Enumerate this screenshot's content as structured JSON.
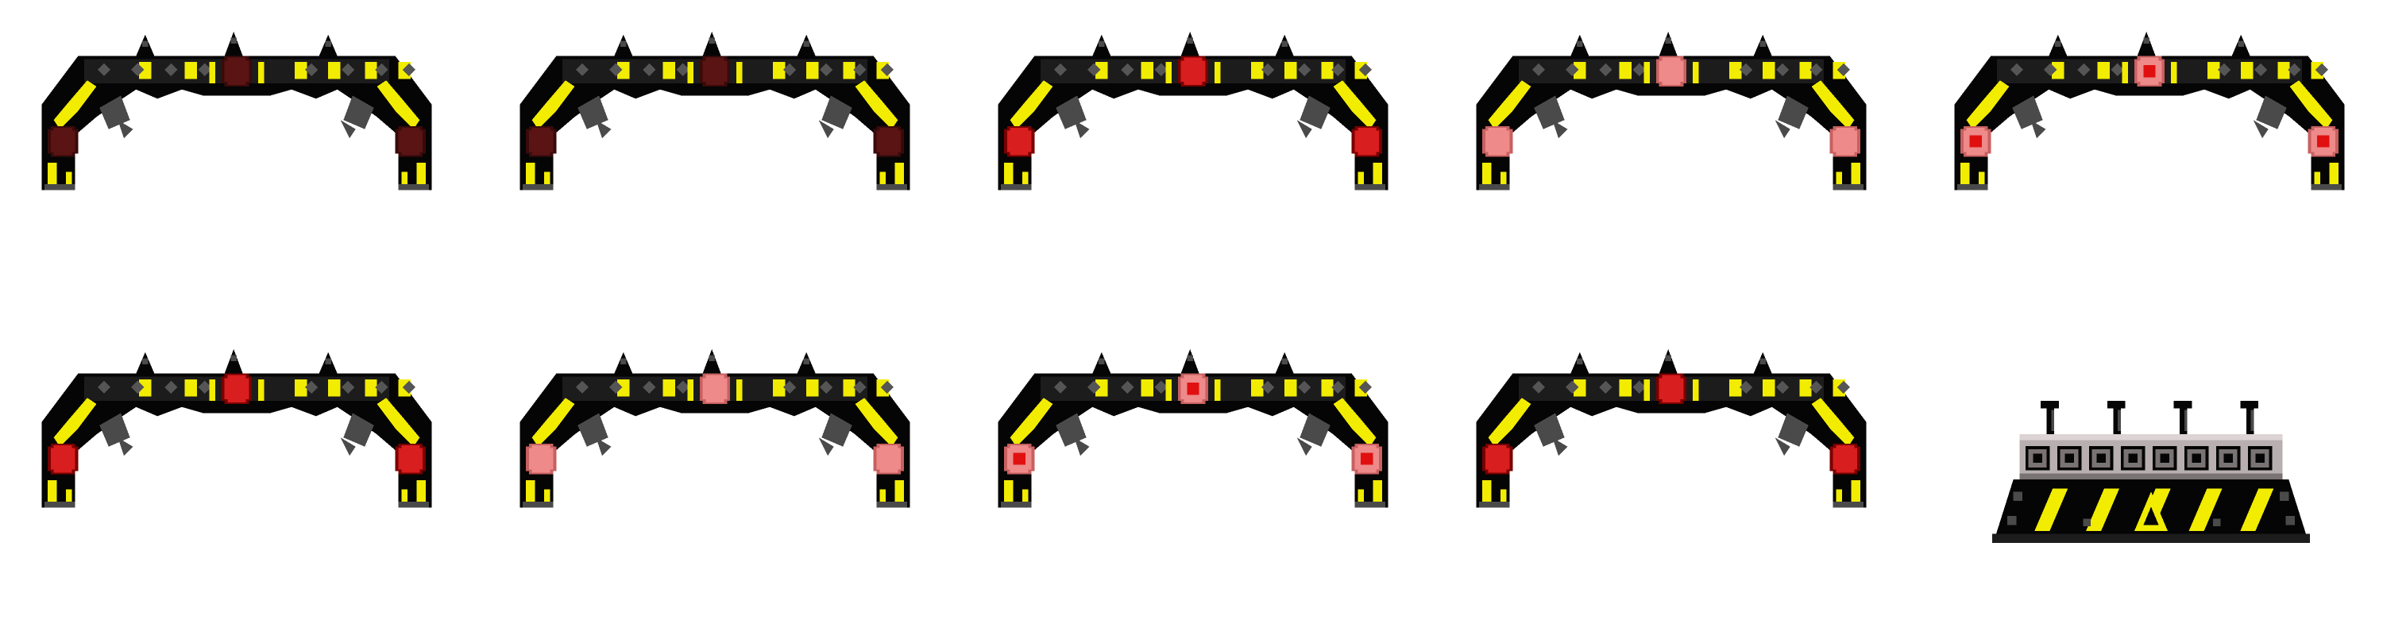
{
  "sheet": {
    "background": "#ffffff",
    "palette": {
      "frame": "#050505",
      "frame_edge": "#1c1c1c",
      "shadow": "#4a4a4a",
      "stud": "#555555",
      "hazard_yellow": "#f2ec00",
      "hazard_yellow_dark": "#b9b000",
      "steel": "#b8b0b0",
      "steel_dark": "#7a7373",
      "steel_light": "#dcd4d4"
    },
    "light_states": {
      "off": {
        "fill": "#5a1414",
        "ring": "#3a0a0a",
        "core": "#5a1414"
      },
      "on": {
        "fill": "#d81e1e",
        "ring": "#7a0000",
        "core": "#d81e1e"
      },
      "glow": {
        "fill": "#ee8a8a",
        "ring": "#c86060",
        "core": "#ee8a8a"
      },
      "pulse": {
        "fill": "#ee8a8a",
        "ring": "#c86060",
        "core": "#e01010"
      }
    },
    "arches": [
      {
        "frame": 1,
        "light_state": "off"
      },
      {
        "frame": 2,
        "light_state": "off"
      },
      {
        "frame": 3,
        "light_state": "on"
      },
      {
        "frame": 4,
        "light_state": "glow"
      },
      {
        "frame": 5,
        "light_state": "pulse"
      },
      {
        "frame": 6,
        "light_state": "on"
      },
      {
        "frame": 7,
        "light_state": "glow"
      },
      {
        "frame": 8,
        "light_state": "pulse"
      },
      {
        "frame": 9,
        "light_state": "on"
      }
    ],
    "machine": {
      "icon": "control-base-icon",
      "post_count": 4,
      "dial_count": 8,
      "stripe_count": 5
    }
  }
}
